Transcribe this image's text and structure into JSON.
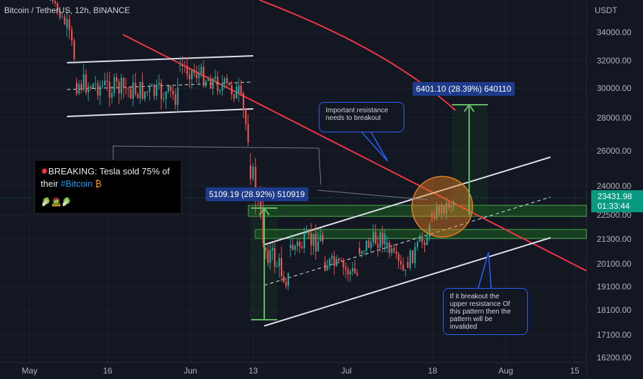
{
  "header": {
    "symbol_line": "Bitcoin / TetherUS, 12h, BINANCE",
    "currency": "USDT"
  },
  "colors": {
    "background": "#131722",
    "up": "#26a69a",
    "down": "#ef5350",
    "trendline": "#f23645",
    "channel": "#e0e3eb",
    "zone_fill": "#1b5e20",
    "zone_stroke": "#4caf50",
    "measure": "#1e3a8a",
    "note_border": "#2962ff",
    "circle": "#e67e22"
  },
  "chart_data": {
    "type": "candlestick",
    "y_axis": {
      "unit": "USDT",
      "tick_labels": [
        "34000.00",
        "32000.00",
        "30000.00",
        "28000.00",
        "26000.00",
        "24000.00",
        "22500.00",
        "21300.00",
        "20100.00",
        "19100.00",
        "18100.00",
        "17100.00",
        "16200.00"
      ]
    },
    "x_axis": {
      "tick_labels": [
        "May",
        "16",
        "Jun",
        "13",
        "Jul",
        "18",
        "Aug",
        "15"
      ]
    },
    "last_price": "23431.98",
    "countdown": "01:33:44",
    "measurements": [
      {
        "label": "5109.19 (28.92%) 510919"
      },
      {
        "label": "6401.10 (28.39%) 640110"
      }
    ],
    "annotations": [
      {
        "text_lines": [
          "Important resistance",
          "needs to breakout"
        ]
      },
      {
        "text_lines": [
          "If it breakout the",
          "upper resistance Of",
          "this pattern then the",
          "pattern will be",
          "invalided"
        ]
      }
    ],
    "tweet": {
      "line1": "BREAKING: Tesla sold 75% of",
      "line2_prefix": "their",
      "line2_hash": "#Bitcoin",
      "emoji_line": "🥬🧟🥬"
    }
  }
}
